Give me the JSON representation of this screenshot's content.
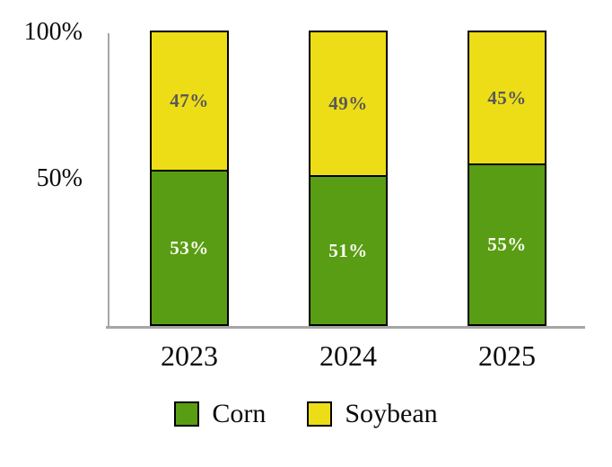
{
  "chart_data": {
    "type": "bar",
    "stacked": true,
    "title": "",
    "xlabel": "",
    "ylabel": "",
    "categories": [
      "2023",
      "2024",
      "2025"
    ],
    "series": [
      {
        "name": "Corn",
        "values": [
          53,
          51,
          55
        ],
        "labels": [
          "53%",
          "51%",
          "55%"
        ],
        "color": "#589D13",
        "label_color": "#FDFCF0",
        "position": "bottom"
      },
      {
        "name": "Soybean",
        "values": [
          47,
          49,
          45
        ],
        "labels": [
          "47%",
          "49%",
          "45%"
        ],
        "color": "#EDDD16",
        "label_color": "#595959",
        "position": "top"
      }
    ],
    "ylim": [
      0,
      100
    ],
    "y_ticks": [
      "100%",
      "50%"
    ],
    "grid": false,
    "legend_position": "bottom",
    "legend": [
      {
        "label": "Corn",
        "color": "#589D13"
      },
      {
        "label": "Soybean",
        "color": "#EDDD16"
      }
    ],
    "axis_color": "#A6A6A6",
    "bar_border_color": "#000000"
  }
}
